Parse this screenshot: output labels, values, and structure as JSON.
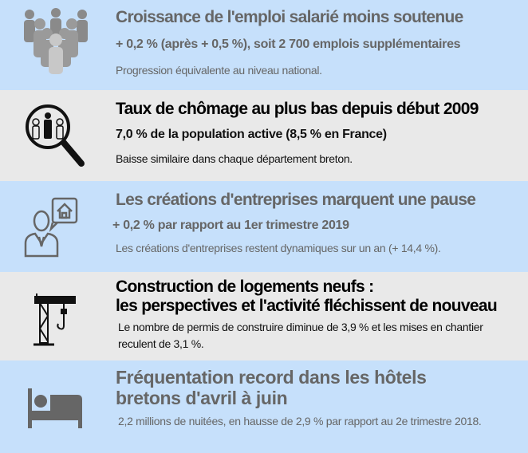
{
  "colors": {
    "blue_band": "#c6e0fb",
    "grey_band": "#e9e9e9",
    "blue_text": "#666666",
    "grey_text": "#111111"
  },
  "sections": [
    {
      "icon": "people-crowd-icon",
      "title": "Croissance de l'emploi salarié moins soutenue",
      "subtitle": "+ 0,2 % (après + 0,5 %), soit 2 700 emplois supplémentaires",
      "description": "Progression équivalente au niveau national."
    },
    {
      "icon": "magnifier-people-icon",
      "title": "Taux de chômage  au plus bas depuis début 2009",
      "subtitle": "7,0 % de la population active (8,5 % en France)",
      "description": "Baisse similaire dans chaque département breton."
    },
    {
      "icon": "businessman-house-icon",
      "title": "Les créations d'entreprises marquent une pause",
      "subtitle": "+ 0,2 % par rapport au 1er trimestre 2019",
      "description": "Les créations d'entreprises restent dynamiques sur un an (+ 14,4 %)."
    },
    {
      "icon": "crane-icon",
      "title_line1": "Construction de logements neufs :",
      "title_line2": "les perspectives et l'activité fléchissent de nouveau",
      "description": "Le nombre de permis de construire diminue de 3,9 % et les mises en chantier reculent de 3,1 %."
    },
    {
      "icon": "bed-icon",
      "title_line1": "Fréquentation record dans les hôtels",
      "title_line2": "bretons d'avril à juin",
      "description": "2,2 millions de nuitées, en hausse de 2,9 % par rapport au 2e trimestre 2018."
    }
  ]
}
